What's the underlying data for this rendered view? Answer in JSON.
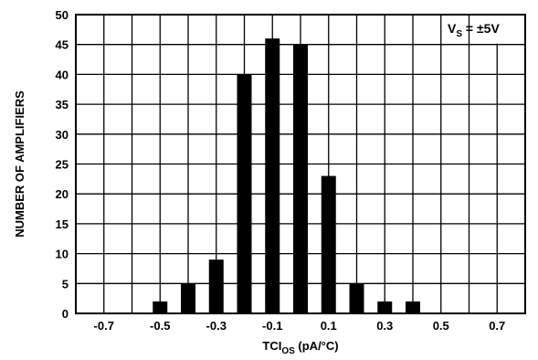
{
  "chart_data": {
    "type": "bar",
    "title": "",
    "annotation": {
      "main": "V",
      "sub": "S",
      "rest": " = ±5V",
      "position": "top-right"
    },
    "xlabel": {
      "main": "TCI",
      "sub": "OS",
      "rest": " (pA/°C)"
    },
    "ylabel": "NUMBER OF AMPLIFIERS",
    "xlim": [
      -0.8,
      0.8
    ],
    "ylim": [
      0,
      50
    ],
    "x_tick_values": [
      -0.7,
      -0.5,
      -0.3,
      -0.1,
      0.1,
      0.3,
      0.5,
      0.7
    ],
    "x_tick_labels": [
      "-0.7",
      "-0.5",
      "-0.3",
      "-0.1",
      "0.1",
      "0.3",
      "0.5",
      "0.7"
    ],
    "y_tick_values": [
      0,
      5,
      10,
      15,
      20,
      25,
      30,
      35,
      40,
      45,
      50
    ],
    "y_tick_labels": [
      "0",
      "5",
      "10",
      "15",
      "20",
      "25",
      "30",
      "35",
      "40",
      "45",
      "50"
    ],
    "grid": true,
    "x": [
      -0.5,
      -0.4,
      -0.3,
      -0.2,
      -0.1,
      0.0,
      0.1,
      0.2,
      0.3,
      0.4
    ],
    "values": [
      2,
      5,
      9,
      40,
      46,
      45,
      23,
      5,
      2,
      2
    ],
    "bar_color": "#000000"
  }
}
